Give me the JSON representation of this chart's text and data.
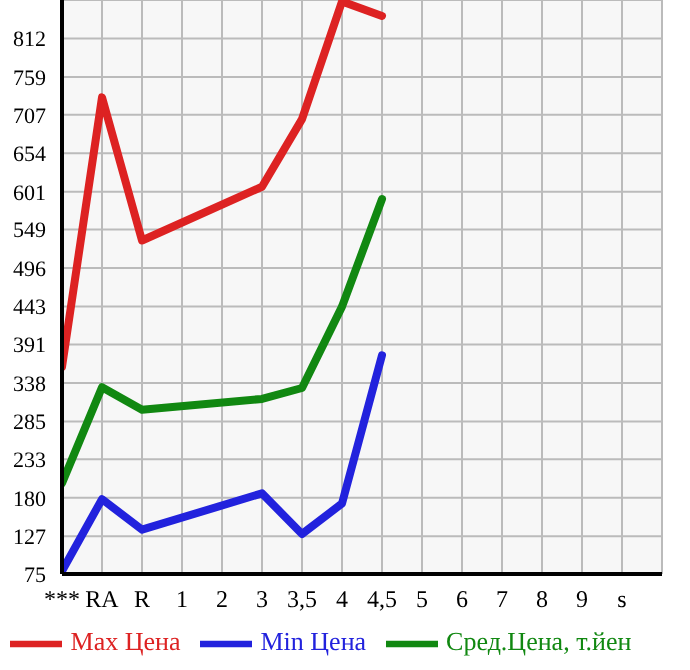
{
  "chart_data": {
    "type": "line",
    "categories": [
      "***",
      "RA",
      "R",
      "1",
      "2",
      "3",
      "3,5",
      "4",
      "4,5",
      "5",
      "6",
      "7",
      "8",
      "9",
      "s"
    ],
    "series": [
      {
        "name": "Max Цена",
        "color": "#dd2222",
        "values": [
          360,
          731,
          534,
          null,
          null,
          608,
          701,
          863,
          843,
          null,
          null,
          null,
          null,
          null,
          null
        ]
      },
      {
        "name": "Min Цена",
        "color": "#2222dd",
        "values": [
          79,
          178,
          136,
          null,
          null,
          186,
          130,
          172,
          376,
          null,
          null,
          null,
          null,
          null,
          null
        ]
      },
      {
        "name": "Сред.Цена, т.йен",
        "color": "#118811",
        "values": [
          200,
          332,
          301,
          null,
          null,
          316,
          331,
          443,
          591,
          null,
          null,
          null,
          null,
          null,
          null
        ]
      }
    ],
    "ylim": [
      75,
      865
    ],
    "yticks": [
      75,
      127,
      180,
      233,
      285,
      338,
      391,
      443,
      496,
      549,
      601,
      654,
      707,
      759,
      812
    ],
    "grid": true,
    "legend": "bottom",
    "marker": "none",
    "line_style": "solid"
  }
}
